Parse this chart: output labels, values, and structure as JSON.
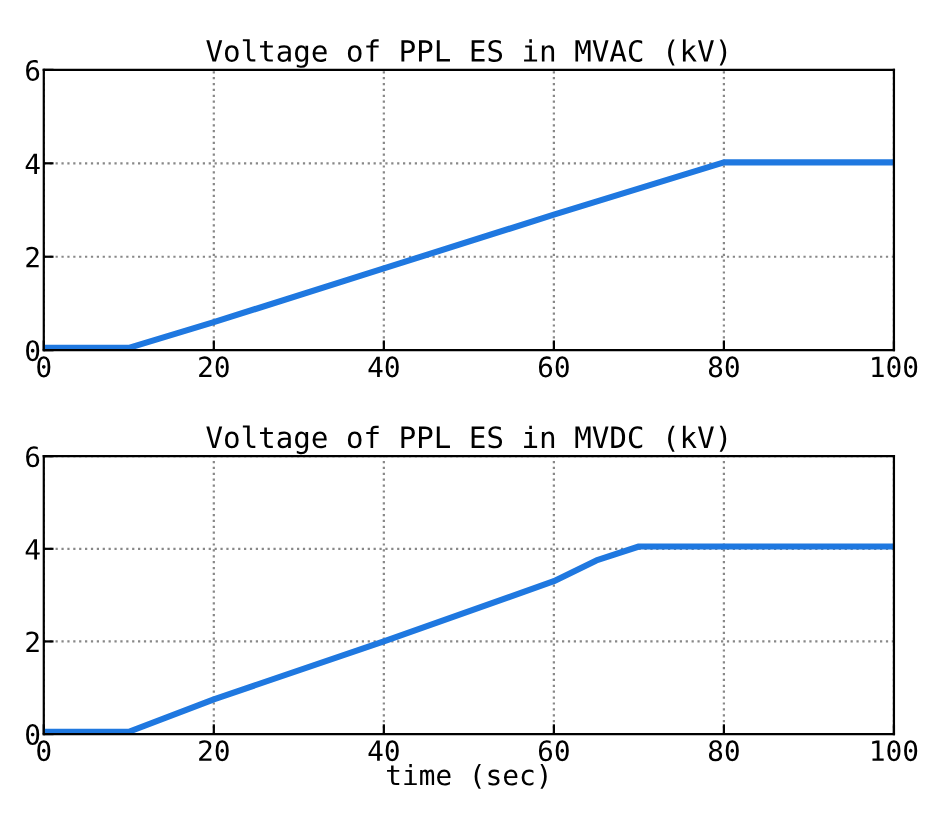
{
  "chart_data": [
    {
      "type": "line",
      "title": "Voltage of PPL ES in MVAC (kV)",
      "xlim": [
        0,
        100
      ],
      "ylim": [
        0,
        6
      ],
      "xticks": [
        0,
        20,
        40,
        60,
        80,
        100
      ],
      "yticks": [
        0,
        2,
        4,
        6
      ],
      "grid": true,
      "line_style": "solid",
      "marker": "none",
      "series": [
        {
          "color": "#1f78e0",
          "x": [
            0,
            10,
            20,
            40,
            60,
            80,
            100
          ],
          "values": [
            0.05,
            0.05,
            0.6,
            1.75,
            2.9,
            4.02,
            4.02
          ]
        }
      ]
    },
    {
      "type": "line",
      "title": "Voltage of PPL ES in MVDC (kV)",
      "xlabel": "time (sec)",
      "xlim": [
        0,
        100
      ],
      "ylim": [
        0,
        6
      ],
      "xticks": [
        0,
        20,
        40,
        60,
        80,
        100
      ],
      "yticks": [
        0,
        2,
        4,
        6
      ],
      "grid": true,
      "line_style": "solid",
      "marker": "none",
      "series": [
        {
          "color": "#1f78e0",
          "x": [
            0,
            10,
            20,
            40,
            60,
            65,
            70,
            100
          ],
          "values": [
            0.05,
            0.05,
            0.75,
            2.0,
            3.3,
            3.75,
            4.05,
            4.05
          ]
        }
      ]
    }
  ]
}
